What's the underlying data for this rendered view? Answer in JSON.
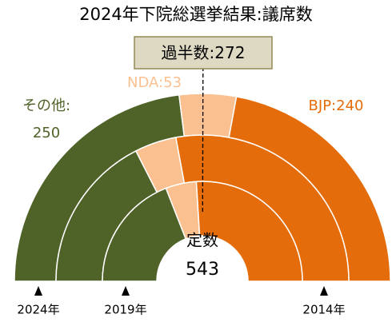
{
  "chart_data": {
    "type": "semicircle-donut",
    "title": "2024年下院総選挙結果:議席数",
    "categories": [
      "その他:",
      "NDA:",
      "BJP:"
    ],
    "colors": [
      "#4f6228",
      "#fac090",
      "#e46c0a"
    ],
    "series": [
      {
        "name": "2024年",
        "values": [
          250,
          53,
          240
        ]
      },
      {
        "name": "2019年",
        "values": [
          190,
          50,
          303
        ]
      },
      {
        "name": "2014年",
        "values": [
          207,
          54,
          282
        ]
      }
    ],
    "majority": {
      "label": "過半数:",
      "value": 272
    },
    "total_label": "定数",
    "total": 543
  }
}
